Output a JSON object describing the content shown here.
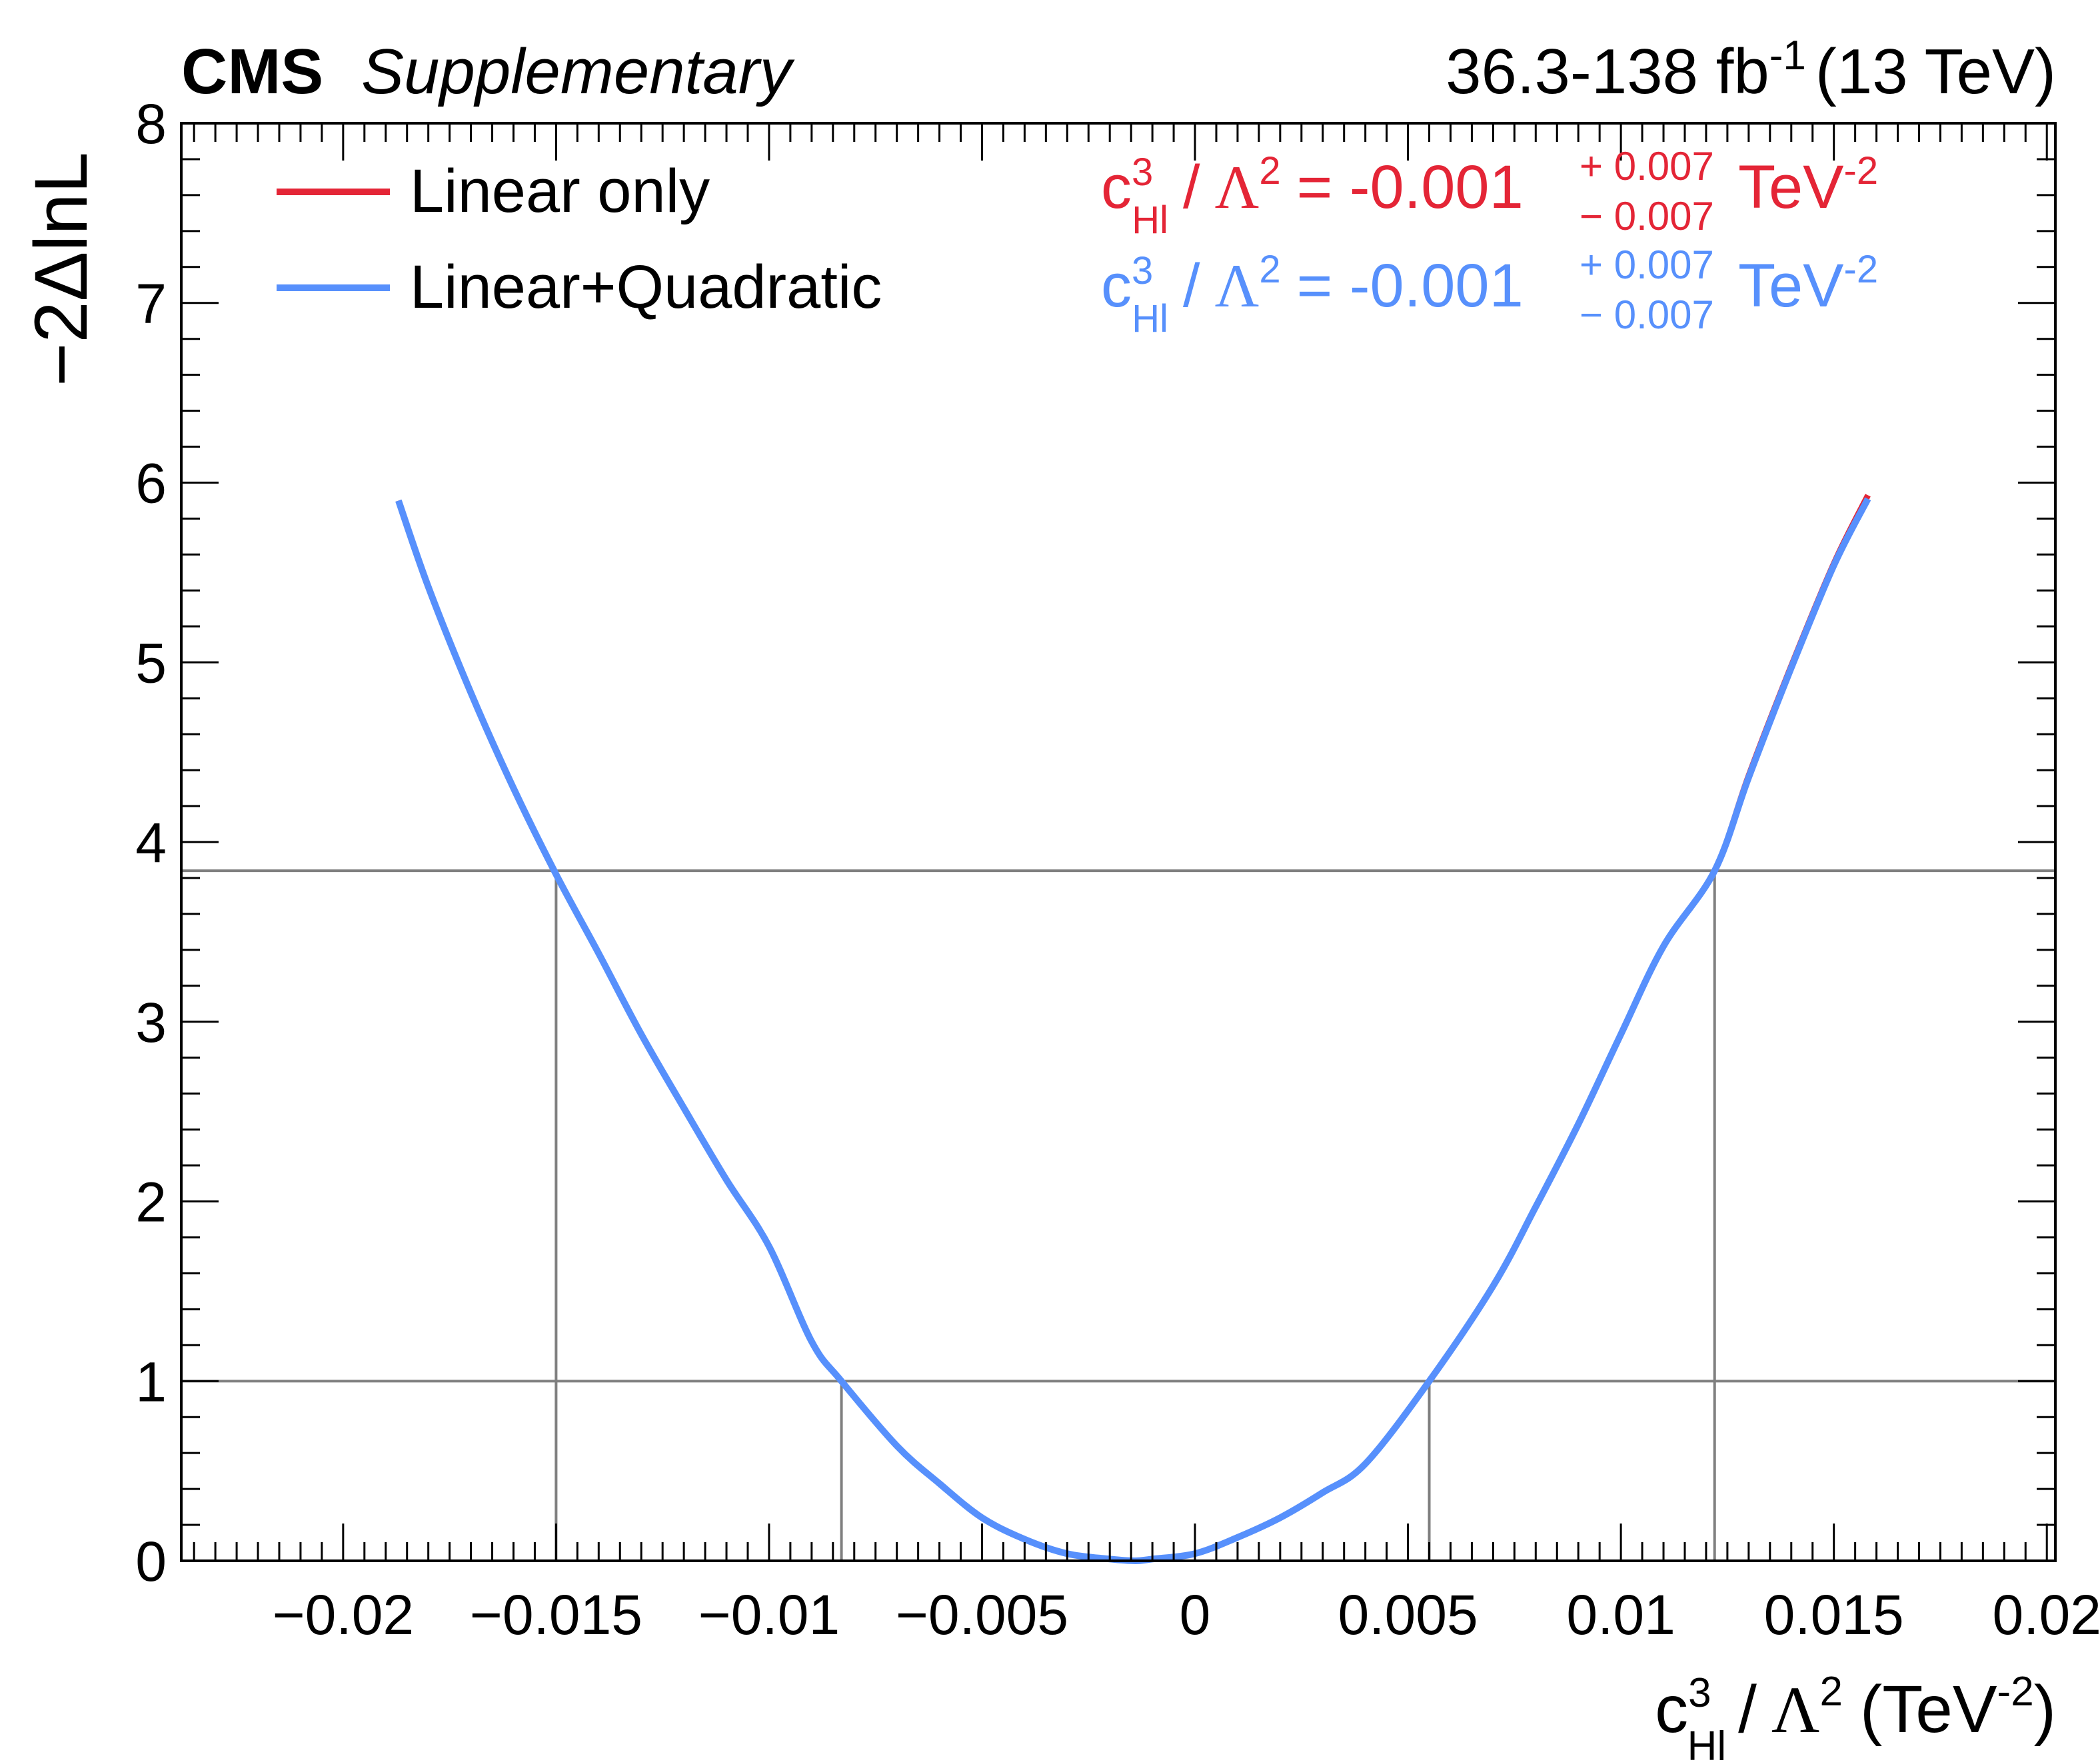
{
  "header": {
    "experiment": "CMS",
    "tag": "Supplementary",
    "lumi": "36.3-138 fb",
    "lumi_exp": "-1",
    "energy": "(13 TeV)"
  },
  "colors": {
    "linear": "#e42536",
    "quadratic": "#5790fc",
    "reference": "#7f7f7f",
    "frame": "#000000"
  },
  "legend": {
    "linear": "Linear only",
    "quadratic": "Linear+Quadratic"
  },
  "results": {
    "c": "c",
    "sup": "3",
    "sub": "Hl",
    "slash": "/",
    "lambda": "Λ",
    "lambda_exp": "2",
    "linear": {
      "value": "= -0.001",
      "up": "+ 0.007",
      "down": "− 0.007",
      "unit": "TeV",
      "unit_exp": "-2"
    },
    "quadratic": {
      "value": "= -0.001",
      "up": "+ 0.007",
      "down": "− 0.007",
      "unit": "TeV",
      "unit_exp": "-2"
    }
  },
  "axes": {
    "ylabel": "−2ΔlnL",
    "xlabel": {
      "c": "c",
      "sup": "3",
      "sub": "Hl",
      "slash": "/",
      "lambda": "Λ",
      "lambda_exp": "2",
      "unit_open": "(TeV",
      "unit_exp": "-2",
      "unit_close": ")"
    },
    "x_ticks": [
      {
        "v": -0.02,
        "label": "−0.02"
      },
      {
        "v": -0.015,
        "label": "−0.015"
      },
      {
        "v": -0.01,
        "label": "−0.01"
      },
      {
        "v": -0.005,
        "label": "−0.005"
      },
      {
        "v": 0,
        "label": "0"
      },
      {
        "v": 0.005,
        "label": "0.005"
      },
      {
        "v": 0.01,
        "label": "0.01"
      },
      {
        "v": 0.015,
        "label": "0.015"
      },
      {
        "v": 0.02,
        "label": "0.02"
      }
    ],
    "y_ticks": [
      {
        "v": 0,
        "label": "0"
      },
      {
        "v": 1,
        "label": "1"
      },
      {
        "v": 2,
        "label": "2"
      },
      {
        "v": 3,
        "label": "3"
      },
      {
        "v": 4,
        "label": "4"
      },
      {
        "v": 5,
        "label": "5"
      },
      {
        "v": 6,
        "label": "6"
      },
      {
        "v": 7,
        "label": "7"
      },
      {
        "v": 8,
        "label": "8"
      }
    ]
  },
  "chart_data": {
    "type": "line",
    "xlim": [
      -0.0238,
      0.0202
    ],
    "ylim": [
      0,
      8
    ],
    "reference_levels": [
      1,
      3.84
    ],
    "interval_markers": [
      {
        "x": -0.015,
        "y": 3.84
      },
      {
        "x": -0.0083,
        "y": 1
      },
      {
        "x": 0.0055,
        "y": 1
      },
      {
        "x": 0.0122,
        "y": 3.84
      }
    ],
    "series": [
      {
        "name": "Linear only",
        "x": [
          -0.0187,
          -0.018,
          -0.017,
          -0.016,
          -0.015,
          -0.014,
          -0.013,
          -0.012,
          -0.011,
          -0.01,
          -0.009,
          -0.0083,
          -0.007,
          -0.006,
          -0.005,
          -0.004,
          -0.003,
          -0.002,
          -0.0014,
          -0.001,
          0.0,
          0.001,
          0.002,
          0.003,
          0.004,
          0.0055,
          0.007,
          0.008,
          0.009,
          0.01,
          0.011,
          0.0122,
          0.013,
          0.014,
          0.015,
          0.0158
        ],
        "y": [
          5.9,
          5.42,
          4.83,
          4.3,
          3.82,
          3.38,
          2.93,
          2.52,
          2.12,
          1.75,
          1.22,
          1.0,
          0.64,
          0.43,
          0.24,
          0.12,
          0.04,
          0.01,
          0.0,
          0.01,
          0.04,
          0.13,
          0.24,
          0.38,
          0.54,
          1.0,
          1.53,
          1.97,
          2.43,
          2.93,
          3.42,
          3.84,
          4.37,
          4.98,
          5.55,
          5.93
        ]
      },
      {
        "name": "Linear+Quadratic",
        "x": [
          -0.0187,
          -0.018,
          -0.017,
          -0.016,
          -0.015,
          -0.014,
          -0.013,
          -0.012,
          -0.011,
          -0.01,
          -0.009,
          -0.0083,
          -0.007,
          -0.006,
          -0.005,
          -0.004,
          -0.003,
          -0.002,
          -0.0014,
          -0.001,
          0.0,
          0.001,
          0.002,
          0.003,
          0.004,
          0.0055,
          0.007,
          0.008,
          0.009,
          0.01,
          0.011,
          0.0122,
          0.013,
          0.014,
          0.015,
          0.0158
        ],
        "y": [
          5.9,
          5.42,
          4.83,
          4.3,
          3.82,
          3.38,
          2.93,
          2.52,
          2.12,
          1.75,
          1.22,
          1.0,
          0.64,
          0.43,
          0.24,
          0.12,
          0.04,
          0.01,
          0.0,
          0.01,
          0.04,
          0.13,
          0.24,
          0.38,
          0.54,
          1.0,
          1.53,
          1.97,
          2.43,
          2.93,
          3.42,
          3.84,
          4.36,
          4.97,
          5.54,
          5.91
        ]
      }
    ]
  }
}
